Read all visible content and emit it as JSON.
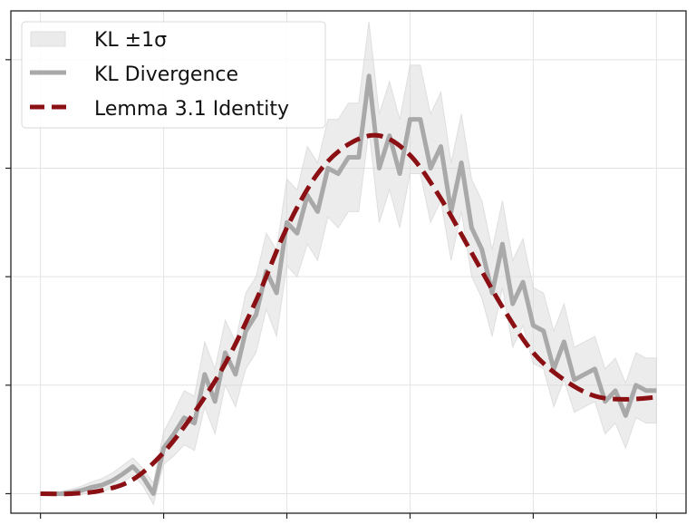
{
  "chart_data": {
    "type": "line",
    "title": "",
    "xlabel": "",
    "ylabel": "",
    "xlim": [
      -0.24,
      5.24
    ],
    "ylim": [
      -0.18,
      4.45
    ],
    "xticks": [
      0,
      1,
      2,
      3,
      4,
      5
    ],
    "yticks": [
      0,
      1,
      2,
      3,
      4
    ],
    "tick_labels_shown": false,
    "grid": true,
    "legend_position": "top-left",
    "colors": {
      "band": "#d9d9d9",
      "kl": "#a9a9a9",
      "lemma": "#8b1014",
      "axes": "#222222",
      "grid": "#e3e3e3"
    },
    "legend": [
      {
        "label": "KL ±1σ",
        "kind": "band"
      },
      {
        "label": "KL Divergence",
        "kind": "line"
      },
      {
        "label": "Lemma 3.1 Identity",
        "kind": "dashed"
      }
    ],
    "kl": {
      "x_step": 0.08333,
      "mean": [
        0,
        0,
        0,
        0.01,
        0.03,
        0.06,
        0.08,
        0.12,
        0.18,
        0.25,
        0.15,
        0.0,
        0.42,
        0.55,
        0.7,
        0.65,
        1.1,
        0.85,
        1.3,
        1.1,
        1.5,
        1.65,
        2.05,
        1.85,
        2.5,
        2.4,
        2.75,
        2.6,
        3.0,
        2.95,
        3.1,
        3.1,
        3.85,
        3.0,
        3.3,
        2.95,
        3.45,
        3.45,
        3.0,
        3.2,
        2.6,
        3.05,
        2.45,
        2.25,
        1.85,
        2.3,
        1.75,
        1.95,
        1.55,
        1.5,
        1.15,
        1.4,
        1.05,
        1.1,
        1.15,
        0.85,
        0.95,
        0.72,
        1.0,
        0.95,
        0.95
      ],
      "std": [
        0,
        0.01,
        0.02,
        0.03,
        0.04,
        0.05,
        0.06,
        0.07,
        0.08,
        0.08,
        0.08,
        0.1,
        0.15,
        0.2,
        0.25,
        0.25,
        0.3,
        0.3,
        0.3,
        0.3,
        0.35,
        0.35,
        0.35,
        0.4,
        0.4,
        0.4,
        0.45,
        0.45,
        0.45,
        0.5,
        0.5,
        0.5,
        0.5,
        0.5,
        0.5,
        0.5,
        0.5,
        0.5,
        0.5,
        0.5,
        0.45,
        0.45,
        0.45,
        0.45,
        0.4,
        0.4,
        0.4,
        0.4,
        0.35,
        0.35,
        0.35,
        0.35,
        0.3,
        0.3,
        0.3,
        0.3,
        0.3,
        0.3,
        0.3,
        0.3,
        0.3
      ]
    },
    "lemma": {
      "x": [
        0,
        0.25,
        0.5,
        0.75,
        1.0,
        1.25,
        1.5,
        1.75,
        2.0,
        2.25,
        2.5,
        2.75,
        3.0,
        3.25,
        3.5,
        3.75,
        4.0,
        4.25,
        4.5,
        4.75,
        5.0
      ],
      "y": [
        0,
        0.0,
        0.03,
        0.13,
        0.38,
        0.75,
        1.2,
        1.78,
        2.45,
        2.95,
        3.22,
        3.3,
        3.12,
        2.72,
        2.22,
        1.72,
        1.3,
        1.05,
        0.9,
        0.87,
        0.89
      ]
    }
  }
}
